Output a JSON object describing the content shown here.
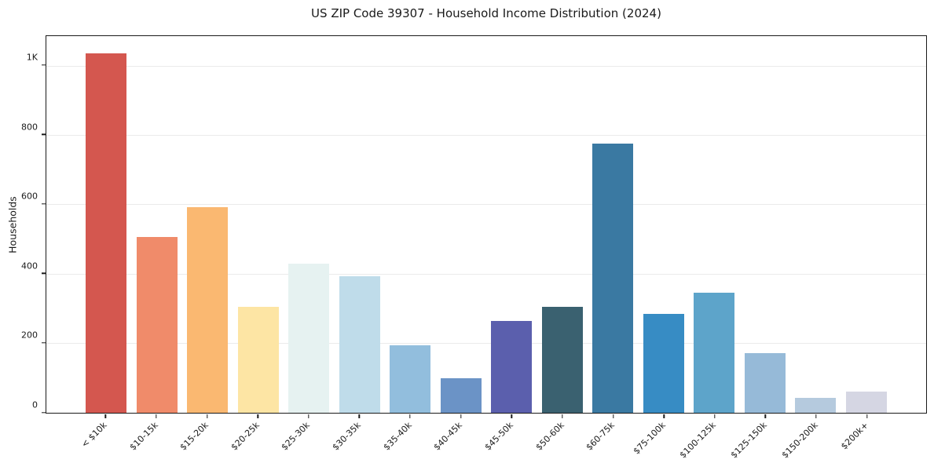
{
  "figure": {
    "title": "US ZIP Code 39307 - Household Income Distribution (2024)"
  },
  "chart_data": {
    "type": "bar",
    "title": "US ZIP Code 39307 - Household Income Distribution (2024)",
    "xlabel": "",
    "ylabel": "Households",
    "categories": [
      "< $10k",
      "$10-15k",
      "$15-20k",
      "$20-25k",
      "$25-30k",
      "$30-35k",
      "$35-40k",
      "$40-45k",
      "$45-50k",
      "$50-60k",
      "$60-75k",
      "$75-100k",
      "$100-125k",
      "$125-150k",
      "$150-200k",
      "$200k+"
    ],
    "values": [
      1038,
      508,
      593,
      305,
      430,
      394,
      196,
      99,
      265,
      306,
      777,
      286,
      347,
      172,
      43,
      62
    ],
    "bar_colors": [
      "#d4574f",
      "#f08b6a",
      "#fab871",
      "#fde5a4",
      "#e6f2f1",
      "#bfdcea",
      "#92bedd",
      "#6b93c6",
      "#5b5fad",
      "#3a6170",
      "#3a79a2",
      "#378cc4",
      "#5da4ca",
      "#96bad8",
      "#b5cade",
      "#d5d6e3"
    ],
    "ylim": [
      0,
      1088
    ],
    "yticks": [
      {
        "value": 0,
        "label": "0"
      },
      {
        "value": 200,
        "label": "200"
      },
      {
        "value": 400,
        "label": "400"
      },
      {
        "value": 600,
        "label": "600"
      },
      {
        "value": 800,
        "label": "800"
      },
      {
        "value": 1000,
        "label": "1K"
      }
    ],
    "grid": "horizontal",
    "legend": "none",
    "gridline_color": "#ebebeb",
    "axis_color": "#1a1a1a",
    "text_color": "#1a1a1a",
    "background": "#ffffff"
  }
}
